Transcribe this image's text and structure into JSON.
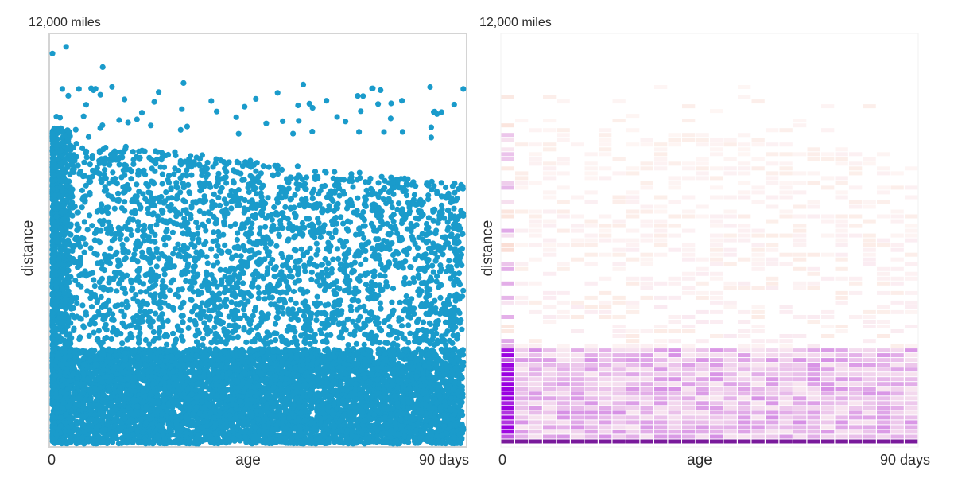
{
  "chart_data": [
    {
      "type": "scatter",
      "title": "",
      "xlabel": "age",
      "ylabel": "distance",
      "x_tick_labels": [
        "0",
        "90 days"
      ],
      "y_top_label": "12,000 miles",
      "xlim": [
        0,
        90
      ],
      "ylim": [
        0,
        12000
      ],
      "grid": false,
      "color": "#1a9bcb",
      "description_bands": [
        {
          "distance_range": [
            0,
            2800
          ],
          "relative_density": 1.0
        },
        {
          "distance_range": [
            2800,
            9000
          ],
          "relative_density": 0.12
        },
        {
          "distance_range": [
            9000,
            11500
          ],
          "relative_density": 0.01
        }
      ],
      "dense_left_edge": {
        "age_range": [
          0,
          3
        ],
        "distance_range": [
          0,
          9500
        ]
      }
    },
    {
      "type": "heatmap",
      "xlabel": "age",
      "ylabel": "distance",
      "x_tick_labels": [
        "0",
        "90 days"
      ],
      "y_top_label": "12,000 miles",
      "xlim": [
        0,
        90
      ],
      "ylim": [
        0,
        12000
      ],
      "x_bin_days": 3,
      "y_bin_miles": 140,
      "color_low": "#fde8e0",
      "color_high": "#9b00e0",
      "color_max": "#6a0090",
      "description_bands": [
        {
          "distance_range": [
            0,
            140
          ],
          "relative_intensity": 1.0
        },
        {
          "distance_range": [
            140,
            2800
          ],
          "relative_intensity": 0.35
        },
        {
          "distance_range": [
            2800,
            10500
          ],
          "relative_intensity": 0.08
        }
      ]
    }
  ]
}
